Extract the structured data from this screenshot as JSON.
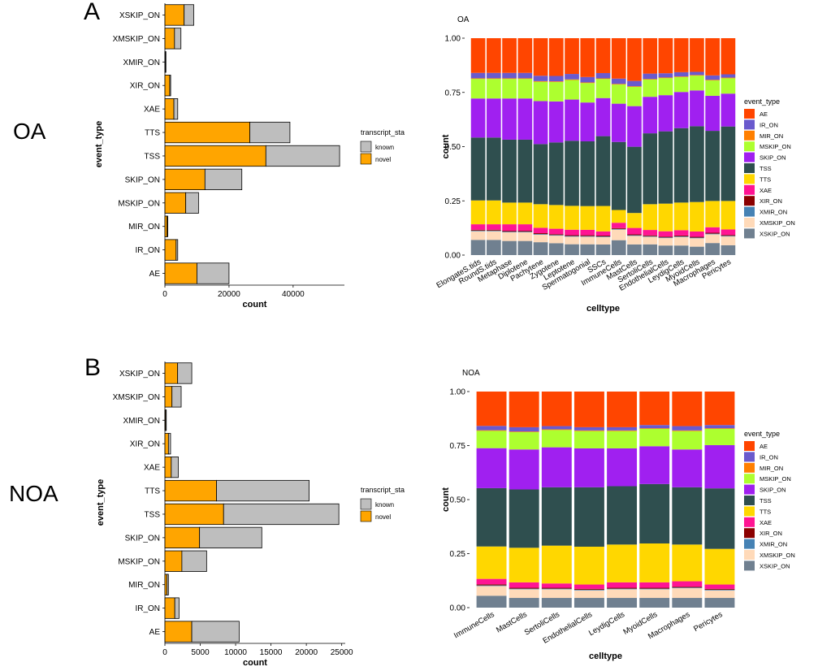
{
  "panels": {
    "A": {
      "letter": "A",
      "group": "OA"
    },
    "B": {
      "letter": "B",
      "group": "NOA"
    }
  },
  "colors": {
    "novel": "#FFA500",
    "known": "#BEBEBE",
    "event_types": {
      "AE": "#FF4500",
      "IR_ON": "#6A5ACD",
      "MIR_ON": "#FF7F00",
      "MSKIP_ON": "#ADFF2F",
      "SKIP_ON": "#A020F0",
      "TSS": "#2F4F4F",
      "TTS": "#FFD700",
      "XAE": "#FF1493",
      "XIR_ON": "#8B0000",
      "XMIR_ON": "#4682B4",
      "XMSKIP_ON": "#FFDAB9",
      "XSKIP_ON": "#708090"
    }
  },
  "chart_data": [
    {
      "id": "oa_count",
      "type": "bar",
      "orientation": "horizontal",
      "stacked": true,
      "title": "",
      "xlabel": "count",
      "ylabel": "event_type",
      "xlim": [
        0,
        56000
      ],
      "xticks": [
        0,
        20000,
        40000
      ],
      "xtick_labels": [
        "0",
        "20000",
        "40000"
      ],
      "categories": [
        "XSKIP_ON",
        "XMSKIP_ON",
        "XMIR_ON",
        "XIR_ON",
        "XAE",
        "TTS",
        "TSS",
        "SKIP_ON",
        "MSKIP_ON",
        "MIR_ON",
        "IR_ON",
        "AE"
      ],
      "series": [
        {
          "name": "novel",
          "values": [
            6000,
            3000,
            200,
            1500,
            2800,
            26500,
            31500,
            12500,
            6500,
            700,
            3500,
            10000
          ]
        },
        {
          "name": "known",
          "values": [
            3000,
            2000,
            100,
            300,
            1200,
            12500,
            23000,
            11500,
            4000,
            200,
            500,
            10000
          ]
        }
      ],
      "legend": {
        "title": "transcript_sta",
        "entries": [
          "known",
          "novel"
        ],
        "position": "right"
      }
    },
    {
      "id": "oa_prop",
      "type": "bar",
      "stacked": true,
      "title": "OA",
      "xlabel": "celltype",
      "ylabel": "count",
      "ylim": [
        0,
        1
      ],
      "yticks": [
        0,
        0.25,
        0.5,
        0.75,
        1.0
      ],
      "ytick_labels": [
        "0.00",
        "0.25",
        "0.50",
        "0.75",
        "1.00"
      ],
      "categories": [
        "ElongateSpermatids",
        "RoundSpermatids",
        "Metaphase",
        "Diplotene",
        "Pachytene",
        "Zygotene",
        "Leptotene",
        "Spermatogonial",
        "SSCs",
        "ImmuneCells",
        "MastCells",
        "SertoliCells",
        "EndothelialCells",
        "LeydigCells",
        "MyoidCells",
        "Macrophages",
        "Pericytes"
      ],
      "tick_labels": [
        "ElongateS.tids",
        "RoundS.tids",
        "Metaphase",
        "Diplotene",
        "Pachytene",
        "Zygotene",
        "Leptotene",
        "Spermatogonial",
        "SSCs",
        "ImmuneCells",
        "MastCells",
        "SertoliCells",
        "EndothelialCells",
        "LeydigCells",
        "MyoidCells",
        "Macrophages",
        "Pericytes"
      ],
      "series": [
        {
          "name": "XSKIP_ON",
          "values": [
            0.07,
            0.07,
            0.065,
            0.065,
            0.06,
            0.055,
            0.05,
            0.05,
            0.05,
            0.07,
            0.05,
            0.05,
            0.045,
            0.045,
            0.04,
            0.055,
            0.045
          ]
        },
        {
          "name": "XMSKIP_ON",
          "values": [
            0.04,
            0.04,
            0.04,
            0.04,
            0.035,
            0.035,
            0.035,
            0.035,
            0.035,
            0.05,
            0.04,
            0.035,
            0.035,
            0.04,
            0.04,
            0.04,
            0.04
          ]
        },
        {
          "name": "XMIR_ON",
          "values": [
            0.003,
            0.003,
            0.003,
            0.003,
            0.003,
            0.003,
            0.003,
            0.003,
            0.003,
            0.003,
            0.003,
            0.003,
            0.003,
            0.003,
            0.003,
            0.003,
            0.003
          ]
        },
        {
          "name": "XIR_ON",
          "values": [
            0.004,
            0.004,
            0.004,
            0.004,
            0.004,
            0.004,
            0.004,
            0.004,
            0.004,
            0.004,
            0.004,
            0.004,
            0.004,
            0.004,
            0.004,
            0.004,
            0.004
          ]
        },
        {
          "name": "XAE",
          "values": [
            0.025,
            0.025,
            0.03,
            0.03,
            0.025,
            0.025,
            0.025,
            0.025,
            0.02,
            0.025,
            0.03,
            0.025,
            0.025,
            0.025,
            0.025,
            0.025,
            0.025
          ]
        },
        {
          "name": "TTS",
          "values": [
            0.11,
            0.11,
            0.1,
            0.1,
            0.11,
            0.11,
            0.11,
            0.11,
            0.12,
            0.06,
            0.07,
            0.12,
            0.13,
            0.13,
            0.14,
            0.12,
            0.13
          ]
        },
        {
          "name": "TSS",
          "values": [
            0.29,
            0.29,
            0.29,
            0.29,
            0.28,
            0.29,
            0.3,
            0.3,
            0.33,
            0.32,
            0.31,
            0.33,
            0.34,
            0.35,
            0.36,
            0.32,
            0.34
          ]
        },
        {
          "name": "SKIP_ON",
          "values": [
            0.18,
            0.18,
            0.19,
            0.19,
            0.2,
            0.19,
            0.19,
            0.18,
            0.18,
            0.18,
            0.19,
            0.17,
            0.17,
            0.17,
            0.17,
            0.16,
            0.15
          ]
        },
        {
          "name": "MSKIP_ON",
          "values": [
            0.09,
            0.09,
            0.09,
            0.09,
            0.09,
            0.09,
            0.09,
            0.09,
            0.09,
            0.09,
            0.09,
            0.08,
            0.08,
            0.07,
            0.07,
            0.07,
            0.07
          ]
        },
        {
          "name": "MIR_ON",
          "values": [
            0.003,
            0.003,
            0.003,
            0.003,
            0.003,
            0.003,
            0.003,
            0.003,
            0.003,
            0.003,
            0.003,
            0.003,
            0.003,
            0.003,
            0.003,
            0.003,
            0.003
          ]
        },
        {
          "name": "IR_ON",
          "values": [
            0.025,
            0.025,
            0.025,
            0.025,
            0.025,
            0.025,
            0.025,
            0.025,
            0.025,
            0.025,
            0.025,
            0.025,
            0.02,
            0.02,
            0.015,
            0.02,
            0.015
          ]
        },
        {
          "name": "AE",
          "values": [
            0.16,
            0.16,
            0.16,
            0.16,
            0.175,
            0.175,
            0.165,
            0.18,
            0.165,
            0.19,
            0.2,
            0.165,
            0.165,
            0.16,
            0.16,
            0.17,
            0.165
          ]
        }
      ],
      "legend": {
        "title": "event_type",
        "entries": [
          "AE",
          "IR_ON",
          "MIR_ON",
          "MSKIP_ON",
          "SKIP_ON",
          "TSS",
          "TTS",
          "XAE",
          "XIR_ON",
          "XMIR_ON",
          "XMSKIP_ON",
          "XSKIP_ON"
        ],
        "position": "right"
      }
    },
    {
      "id": "noa_count",
      "type": "bar",
      "orientation": "horizontal",
      "stacked": true,
      "title": "",
      "xlabel": "count",
      "ylabel": "event_type",
      "xlim": [
        0,
        25500
      ],
      "xticks": [
        0,
        5000,
        10000,
        15000,
        20000,
        25000
      ],
      "xtick_labels": [
        "0",
        "5000",
        "10000",
        "15000",
        "20000",
        "25000"
      ],
      "categories": [
        "XSKIP_ON",
        "XMSKIP_ON",
        "XMIR_ON",
        "XIR_ON",
        "XAE",
        "TTS",
        "TSS",
        "SKIP_ON",
        "MSKIP_ON",
        "MIR_ON",
        "IR_ON",
        "AE"
      ],
      "series": [
        {
          "name": "novel",
          "values": [
            1800,
            1000,
            100,
            500,
            900,
            7300,
            8300,
            4900,
            2400,
            300,
            1400,
            3800
          ]
        },
        {
          "name": "known",
          "values": [
            2000,
            1300,
            100,
            300,
            1000,
            13100,
            16300,
            8800,
            3500,
            200,
            600,
            6700
          ]
        }
      ],
      "legend": {
        "title": "transcript_sta",
        "entries": [
          "known",
          "novel"
        ],
        "position": "right"
      }
    },
    {
      "id": "noa_prop",
      "type": "bar",
      "stacked": true,
      "title": "NOA",
      "xlabel": "celltype",
      "ylabel": "count",
      "ylim": [
        0,
        1
      ],
      "yticks": [
        0,
        0.25,
        0.5,
        0.75,
        1.0
      ],
      "ytick_labels": [
        "0.00",
        "0.25",
        "0.50",
        "0.75",
        "1.00"
      ],
      "categories": [
        "ImmuneCells",
        "MastCells",
        "SertoliCells",
        "EndothelialCells",
        "LeydigCells",
        "MyoidCells",
        "Macrophages",
        "Pericytes"
      ],
      "tick_labels": [
        "ImmuneCells",
        "MastCells",
        "SertoliCells",
        "EndothelialCells",
        "LeydigCells",
        "MyoidCells",
        "Macrophages",
        "Pericytes"
      ],
      "series": [
        {
          "name": "XSKIP_ON",
          "values": [
            0.055,
            0.045,
            0.045,
            0.045,
            0.045,
            0.045,
            0.045,
            0.045
          ]
        },
        {
          "name": "XMSKIP_ON",
          "values": [
            0.045,
            0.04,
            0.04,
            0.035,
            0.04,
            0.04,
            0.045,
            0.035
          ]
        },
        {
          "name": "XMIR_ON",
          "values": [
            0.003,
            0.003,
            0.003,
            0.003,
            0.003,
            0.003,
            0.003,
            0.003
          ]
        },
        {
          "name": "XIR_ON",
          "values": [
            0.005,
            0.004,
            0.004,
            0.004,
            0.004,
            0.004,
            0.004,
            0.004
          ]
        },
        {
          "name": "XAE",
          "values": [
            0.025,
            0.025,
            0.02,
            0.02,
            0.025,
            0.025,
            0.025,
            0.02
          ]
        },
        {
          "name": "TTS",
          "values": [
            0.15,
            0.16,
            0.175,
            0.175,
            0.175,
            0.18,
            0.17,
            0.165
          ]
        },
        {
          "name": "TSS",
          "values": [
            0.27,
            0.27,
            0.27,
            0.275,
            0.27,
            0.275,
            0.265,
            0.28
          ]
        },
        {
          "name": "SKIP_ON",
          "values": [
            0.185,
            0.185,
            0.185,
            0.18,
            0.175,
            0.175,
            0.175,
            0.2
          ]
        },
        {
          "name": "MSKIP_ON",
          "values": [
            0.08,
            0.08,
            0.08,
            0.08,
            0.08,
            0.08,
            0.085,
            0.075
          ]
        },
        {
          "name": "MIR_ON",
          "values": [
            0.003,
            0.003,
            0.003,
            0.003,
            0.003,
            0.003,
            0.003,
            0.003
          ]
        },
        {
          "name": "IR_ON",
          "values": [
            0.02,
            0.02,
            0.015,
            0.015,
            0.015,
            0.015,
            0.02,
            0.015
          ]
        },
        {
          "name": "AE",
          "values": [
            0.159,
            0.165,
            0.16,
            0.165,
            0.165,
            0.155,
            0.16,
            0.155
          ]
        }
      ],
      "legend": {
        "title": "event_type",
        "entries": [
          "AE",
          "IR_ON",
          "MIR_ON",
          "MSKIP_ON",
          "SKIP_ON",
          "TSS",
          "TTS",
          "XAE",
          "XIR_ON",
          "XMIR_ON",
          "XMSKIP_ON",
          "XSKIP_ON"
        ],
        "position": "right"
      }
    }
  ]
}
